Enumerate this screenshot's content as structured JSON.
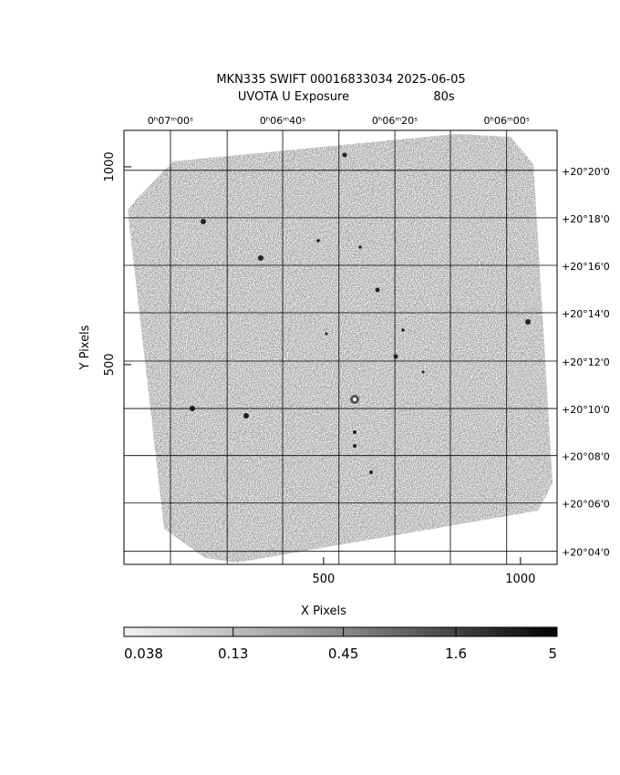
{
  "chart_data": {
    "type": "image",
    "title": "MKN335 SWIFT 00016833034 2025-06-05",
    "subtitle": "UVOTA U Exposure",
    "exposure": "80s",
    "xlabel": "X Pixels",
    "ylabel": "Y Pixels",
    "xlim": [
      -7,
      1093
    ],
    "ylim": [
      -5,
      1092
    ],
    "xticks": [
      500,
      1000
    ],
    "yticks": [
      500,
      1000
    ],
    "ra_ticks": [
      {
        "value": 111,
        "label": "0ʰ07ᵐ00ˢ"
      },
      {
        "value": 396,
        "label": "0ʰ06ᵐ40ˢ"
      },
      {
        "value": 681,
        "label": "0ʰ06ᵐ20ˢ"
      },
      {
        "value": 965,
        "label": "0ʰ06ᵐ00ˢ"
      }
    ],
    "ra_grid": [
      111,
      255,
      396,
      539,
      681,
      822,
      965
    ],
    "dec_ticks": [
      {
        "value": 991,
        "label": "+20°20'0"
      },
      {
        "value": 871,
        "label": "+20°18'0"
      },
      {
        "value": 751,
        "label": "+20°16'0"
      },
      {
        "value": 631,
        "label": "+20°14'0"
      },
      {
        "value": 509,
        "label": "+20°12'0"
      },
      {
        "value": 389,
        "label": "+20°10'0"
      },
      {
        "value": 270,
        "label": "+20°08'0"
      },
      {
        "value": 150,
        "label": "+20°06'0"
      },
      {
        "value": 28,
        "label": "+20°04'0"
      }
    ],
    "colorbar": {
      "scale": "log",
      "lim": [
        0.038,
        5
      ],
      "ticks": [
        0.038,
        0.13,
        0.45,
        1.6,
        5
      ]
    }
  }
}
